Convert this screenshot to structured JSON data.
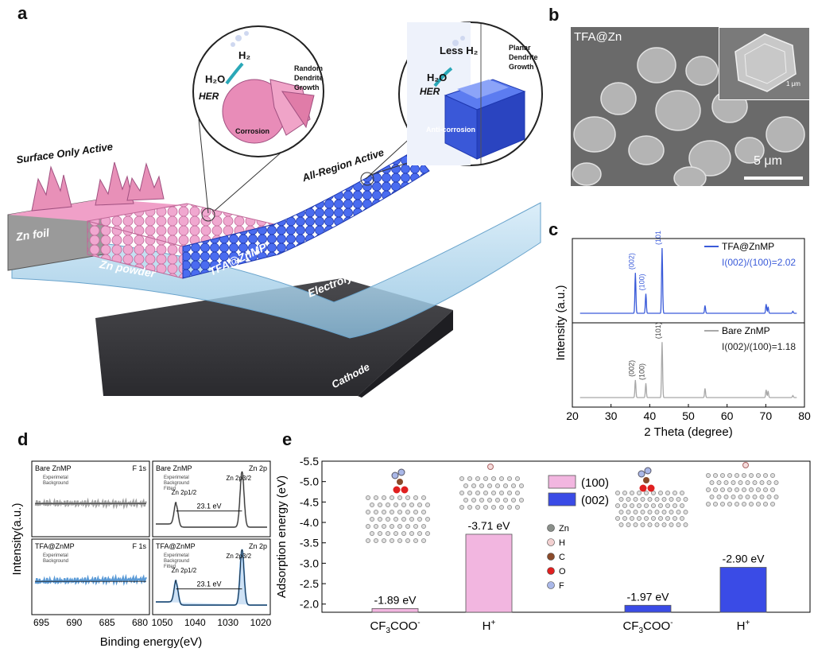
{
  "panels": {
    "a": "a",
    "b": "b",
    "c": "c",
    "d": "d",
    "e": "e"
  },
  "panel_a": {
    "surface_only_active": "Surface Only Active",
    "all_region_active": "All-Region Active",
    "zn_foil": "Zn foil",
    "zn_powder": "Zn powder",
    "tfa_znmp": "TFA@ZnMP",
    "electrolyte": "Electrolyte",
    "cathode": "Cathode",
    "left_bubble": {
      "h2": "H₂",
      "h2o": "H₂O",
      "her": "HER",
      "random_dendrite": [
        "Random",
        "Dendrite",
        "Growth"
      ],
      "corrosion": "Corrosion"
    },
    "right_bubble": {
      "less_h2": "Less H₂",
      "h2o": "H₂O",
      "her": "HER",
      "planar_dendrite": [
        "Planar",
        "Dendrite",
        "Growth"
      ],
      "anti_corrosion": "Anti-corrosion"
    }
  },
  "panel_b": {
    "label": "TFA@Zn",
    "scale_main": "5 μm",
    "scale_inset": "1 μm"
  },
  "chart_data": [
    {
      "id": "c",
      "type": "line",
      "xlabel": "2 Theta (degree)",
      "ylabel": "Intensity (a.u.)",
      "xlim": [
        20,
        80
      ],
      "xticks": [
        20,
        30,
        40,
        50,
        60,
        70,
        80
      ],
      "series": [
        {
          "name": "TFA@ZnMP",
          "annotation": "I(002)/(100)=2.02",
          "color": "#3a5bd9",
          "peaks": [
            {
              "x": 36.3,
              "h": 0.62
            },
            {
              "x": 39.0,
              "h": 0.3
            },
            {
              "x": 43.2,
              "h": 1.0
            },
            {
              "x": 54.3,
              "h": 0.12
            },
            {
              "x": 70.1,
              "h": 0.14
            },
            {
              "x": 70.6,
              "h": 0.1
            },
            {
              "x": 77.0,
              "h": 0.03
            }
          ],
          "peak_labels": [
            {
              "x": 36.3,
              "text": "(002)"
            },
            {
              "x": 39.0,
              "text": "(100)"
            },
            {
              "x": 43.2,
              "text": "(101)"
            }
          ]
        },
        {
          "name": "Bare ZnMP",
          "annotation": "I(002)/(100)=1.18",
          "color": "#a8a8a8",
          "peaks": [
            {
              "x": 36.3,
              "h": 0.27
            },
            {
              "x": 39.0,
              "h": 0.22
            },
            {
              "x": 43.2,
              "h": 0.85
            },
            {
              "x": 54.3,
              "h": 0.14
            },
            {
              "x": 70.1,
              "h": 0.12
            },
            {
              "x": 70.6,
              "h": 0.1
            },
            {
              "x": 77.0,
              "h": 0.03
            }
          ],
          "peak_labels": [
            {
              "x": 36.3,
              "text": "(002)"
            },
            {
              "x": 39.0,
              "text": "(100)"
            },
            {
              "x": 43.2,
              "text": "(101)"
            }
          ]
        }
      ]
    },
    {
      "id": "d",
      "type": "line",
      "ylabel": "Intensity(a.u.)",
      "xlabel": "Binding energy(eV)",
      "f1s_xticks": [
        695,
        690,
        685,
        680
      ],
      "zn2p_xticks": [
        1050,
        1040,
        1030,
        1020
      ],
      "subplots": [
        {
          "sample": "Bare ZnMP",
          "region": "F 1s",
          "legend": [
            "Experimetal",
            "Background"
          ]
        },
        {
          "sample": "Bare ZnMP",
          "region": "Zn 2p",
          "legend": [
            "Experimetal",
            "Background",
            "Fitted"
          ],
          "peak_a": "Zn 2p1/2",
          "peak_b": "Zn 2p3/2",
          "split": "23.1 eV",
          "color": "#a0a0a0"
        },
        {
          "sample": "TFA@ZnMP",
          "region": "F 1s",
          "legend": [
            "Experimetal",
            "Background"
          ]
        },
        {
          "sample": "TFA@ZnMP",
          "region": "Zn 2p",
          "legend": [
            "Experimetal",
            "Background",
            "Fitted"
          ],
          "peak_a": "Zn 2p1/2",
          "peak_b": "Zn 2p3/2",
          "split": "23.1 eV",
          "color": "#5a9ad6"
        }
      ]
    },
    {
      "id": "e",
      "type": "bar",
      "ylabel": "Adsorption energy (eV)",
      "ylim": [
        -1.8,
        -5.5
      ],
      "yticks": [
        -2.0,
        -2.5,
        -3.0,
        -3.5,
        -4.0,
        -4.5,
        -5.0,
        -5.5
      ],
      "categories": [
        "CF3COO-",
        "H+",
        "CF3COO-",
        "H+"
      ],
      "bars": [
        {
          "category": "CF3COO-",
          "facet": "(100)",
          "value": -1.89,
          "label": "-1.89 eV",
          "color": "#f2b6e0"
        },
        {
          "category": "H+",
          "facet": "(100)",
          "value": -3.71,
          "label": "-3.71 eV",
          "color": "#f2b6e0"
        },
        {
          "category": "CF3COO-",
          "facet": "(002)",
          "value": -1.97,
          "label": "-1.97 eV",
          "color": "#3a4be6"
        },
        {
          "category": "H+",
          "facet": "(002)",
          "value": -2.9,
          "label": "-2.90 eV",
          "color": "#3a4be6"
        }
      ],
      "legend": [
        {
          "name": "(100)",
          "color": "#f2b6e0"
        },
        {
          "name": "(002)",
          "color": "#3a4be6"
        }
      ],
      "atom_legend": [
        {
          "name": "Zn",
          "color": "#8a8f8a"
        },
        {
          "name": "H",
          "color": "#f2d0d0"
        },
        {
          "name": "C",
          "color": "#8a4a2a"
        },
        {
          "name": "O",
          "color": "#e02020"
        },
        {
          "name": "F",
          "color": "#aab8e8"
        }
      ]
    }
  ]
}
